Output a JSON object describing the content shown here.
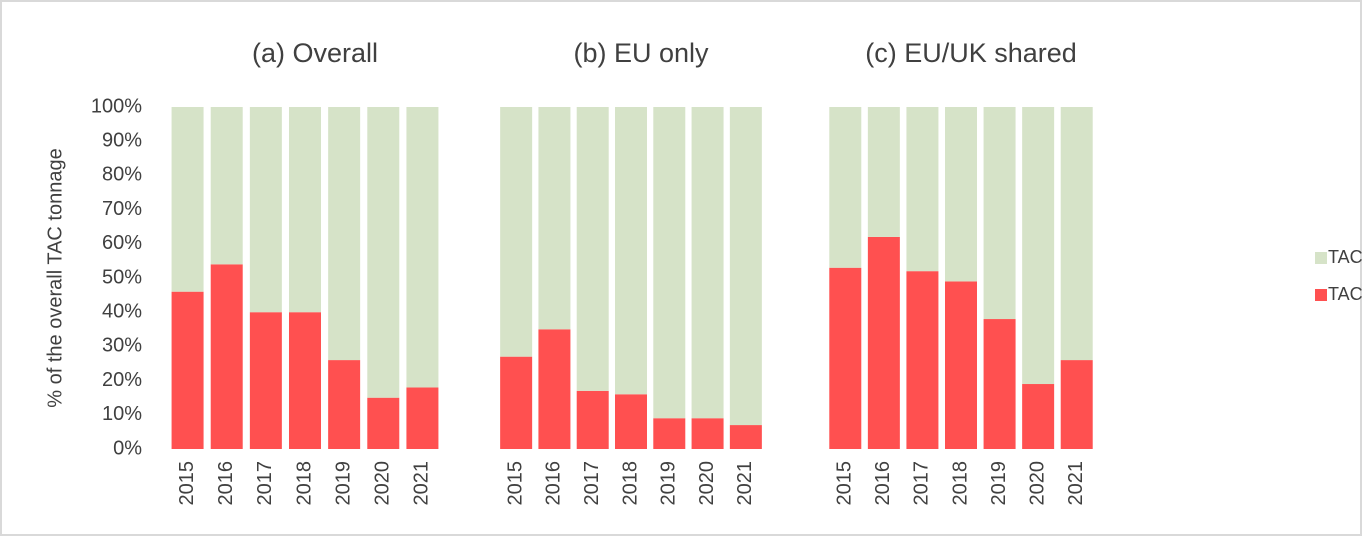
{
  "chart_data": [
    {
      "type": "bar",
      "title": "(a) Overall",
      "ylabel": "% of the overall TAC tonnage",
      "categories": [
        "2015",
        "2016",
        "2017",
        "2018",
        "2019",
        "2020",
        "2021"
      ],
      "ylim": [
        0,
        100
      ],
      "yticks": [
        {
          "value": 0,
          "label": "0%"
        },
        {
          "value": 10,
          "label": "10%"
        },
        {
          "value": 20,
          "label": "20%"
        },
        {
          "value": 30,
          "label": "30%"
        },
        {
          "value": 40,
          "label": "40%"
        },
        {
          "value": 50,
          "label": "50%"
        },
        {
          "value": 60,
          "label": "60%"
        },
        {
          "value": 70,
          "label": "70%"
        },
        {
          "value": 80,
          "label": "80%"
        },
        {
          "value": 90,
          "label": "90%"
        },
        {
          "value": 100,
          "label": "100%"
        }
      ],
      "series": [
        {
          "name": "TACs > advice",
          "color": "#ff5050",
          "values": [
            46,
            54,
            40,
            40,
            26,
            15,
            18
          ]
        },
        {
          "name": "TACs <= advice",
          "color": "#d6e3c8",
          "values": [
            54,
            46,
            60,
            60,
            74,
            85,
            82
          ]
        }
      ]
    },
    {
      "type": "bar",
      "title": "(b) EU only",
      "categories": [
        "2015",
        "2016",
        "2017",
        "2018",
        "2019",
        "2020",
        "2021"
      ],
      "ylim": [
        0,
        100
      ],
      "series": [
        {
          "color": "#ff5050",
          "values": [
            27,
            35,
            17,
            16,
            9,
            9,
            7
          ]
        },
        {
          "color": "#d6e3c8",
          "values": [
            73,
            65,
            83,
            84,
            91,
            91,
            93
          ]
        }
      ]
    },
    {
      "type": "bar",
      "title": "(c) EU/UK shared",
      "categories": [
        "2015",
        "2016",
        "2017",
        "2018",
        "2019",
        "2020",
        "2021"
      ],
      "ylim": [
        0,
        100
      ],
      "series": [
        {
          "color": "#ff5050",
          "values": [
            53,
            62,
            52,
            49,
            38,
            19,
            26
          ]
        },
        {
          "color": "#d6e3c8",
          "values": [
            47,
            38,
            48,
            51,
            62,
            81,
            74
          ]
        }
      ]
    }
  ]
}
